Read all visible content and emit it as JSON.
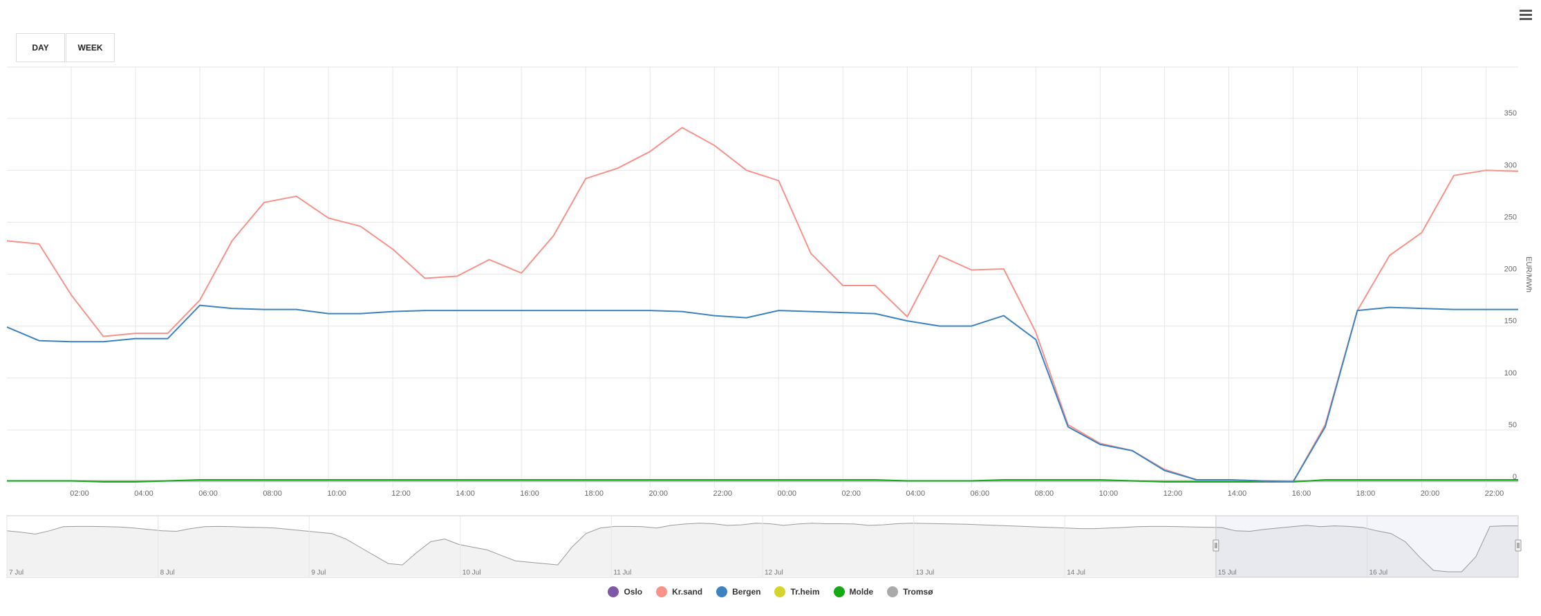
{
  "buttons": {
    "day": "DAY",
    "week": "WEEK"
  },
  "menu_icon": "hamburger-menu-icon",
  "colors": {
    "grid": "#e6e6e6",
    "navigator_fill": "#f2f2f2",
    "navigator_line": "#999999",
    "selection": "#e6e6e6"
  },
  "chart_data": {
    "type": "line",
    "xlabel": "",
    "ylabel": "EUR/MWh",
    "ylim": [
      0,
      400
    ],
    "yticks": [
      0,
      50,
      100,
      150,
      200,
      250,
      300,
      350
    ],
    "x_start": "15 Jul 00:00",
    "x_step_hours": 1,
    "xticks": [
      "02:00",
      "04:00",
      "06:00",
      "08:00",
      "10:00",
      "12:00",
      "14:00",
      "16:00",
      "18:00",
      "20:00",
      "22:00",
      "00:00",
      "02:00",
      "04:00",
      "06:00",
      "08:00",
      "10:00",
      "12:00",
      "14:00",
      "16:00",
      "18:00",
      "20:00",
      "22:00"
    ],
    "grid": true,
    "legend_position": "bottom-center",
    "series": [
      {
        "name": "Oslo",
        "color": "#7e57a6",
        "values": [
          1,
          1,
          1,
          1,
          1,
          1,
          1,
          1,
          1,
          1,
          1,
          1,
          1,
          1,
          1,
          1,
          1,
          1,
          1,
          1,
          1,
          1,
          1,
          1,
          1,
          1,
          1,
          1,
          1,
          1,
          1,
          1,
          1,
          1,
          1,
          1,
          1,
          1,
          1,
          1,
          1,
          1,
          1,
          1,
          1,
          1,
          1,
          1
        ]
      },
      {
        "name": "Kr.sand",
        "color": "#f7928a",
        "values": [
          232,
          229,
          180,
          140,
          143,
          143,
          175,
          232,
          269,
          275,
          254,
          246,
          224,
          196,
          198,
          214,
          201,
          237,
          292,
          302,
          318,
          341,
          324,
          300,
          290,
          220,
          189,
          189,
          159,
          218,
          204,
          205,
          144,
          55,
          37,
          30,
          12,
          2,
          2,
          1,
          0,
          55,
          165,
          218,
          240,
          295,
          300,
          299
        ]
      },
      {
        "name": "Bergen",
        "color": "#3c82c0",
        "values": [
          149,
          136,
          135,
          135,
          138,
          138,
          170,
          167,
          166,
          166,
          162,
          162,
          164,
          165,
          165,
          165,
          165,
          165,
          165,
          165,
          165,
          164,
          160,
          158,
          165,
          164,
          163,
          162,
          155,
          150,
          150,
          160,
          137,
          53,
          36,
          30,
          11,
          2,
          2,
          1,
          0,
          53,
          165,
          168,
          167,
          166,
          166,
          166
        ]
      },
      {
        "name": "Tr.heim",
        "color": "#d4d42a",
        "values": [
          1,
          1,
          1,
          1,
          1,
          1,
          1,
          1,
          1,
          1,
          1,
          1,
          1,
          1,
          1,
          1,
          1,
          1,
          1,
          1,
          1,
          1,
          1,
          1,
          1,
          1,
          1,
          1,
          1,
          1,
          1,
          1,
          1,
          1,
          1,
          1,
          1,
          1,
          1,
          1,
          1,
          1,
          1,
          1,
          1,
          1,
          1,
          1
        ]
      },
      {
        "name": "Molde",
        "color": "#16a916",
        "values": [
          1,
          1,
          1,
          0,
          0,
          1,
          2,
          2,
          2,
          2,
          2,
          2,
          2,
          2,
          2,
          2,
          2,
          2,
          2,
          2,
          2,
          2,
          2,
          2,
          2,
          2,
          2,
          2,
          1,
          1,
          1,
          2,
          2,
          2,
          2,
          1,
          0,
          0,
          0,
          0,
          0,
          2,
          2,
          2,
          2,
          2,
          2,
          2
        ]
      },
      {
        "name": "Tromsø",
        "color": "#aaaaaa",
        "values": [
          1,
          1,
          1,
          1,
          1,
          1,
          1,
          1,
          1,
          1,
          1,
          1,
          1,
          1,
          1,
          1,
          1,
          1,
          1,
          1,
          1,
          1,
          1,
          1,
          1,
          1,
          1,
          1,
          1,
          1,
          1,
          1,
          1,
          1,
          1,
          1,
          1,
          1,
          1,
          1,
          1,
          1,
          1,
          1,
          1,
          1,
          1,
          1
        ]
      }
    ],
    "navigator": {
      "xticks": [
        "7 Jul",
        "8 Jul",
        "9 Jul",
        "10 Jul",
        "11 Jul",
        "12 Jul",
        "13 Jul",
        "14 Jul",
        "15 Jul",
        "16 Jul"
      ],
      "selected_range": [
        "15 Jul 00:00",
        "16 Jul 23:00"
      ],
      "values": [
        150,
        145,
        138,
        150,
        165,
        166,
        166,
        165,
        164,
        160,
        155,
        150,
        148,
        158,
        165,
        166,
        165,
        163,
        162,
        160,
        155,
        150,
        145,
        140,
        120,
        90,
        60,
        30,
        25,
        70,
        110,
        120,
        100,
        90,
        80,
        60,
        40,
        35,
        30,
        25,
        90,
        140,
        160,
        166,
        166,
        165,
        160,
        170,
        175,
        178,
        176,
        170,
        172,
        178,
        176,
        170,
        175,
        178,
        176,
        176,
        175,
        170,
        172,
        176,
        178,
        177,
        176,
        175,
        174,
        172,
        170,
        168,
        166,
        164,
        162,
        160,
        158,
        158,
        160,
        162,
        165,
        166,
        166,
        165,
        164,
        163,
        162,
        150,
        148,
        155,
        160,
        165,
        170,
        165,
        168,
        166,
        162,
        150,
        140,
        110,
        55,
        5,
        0,
        0,
        55,
        166,
        168,
        168
      ]
    }
  },
  "legend": [
    {
      "label": "Oslo",
      "color": "#7e57a6"
    },
    {
      "label": "Kr.sand",
      "color": "#f7928a"
    },
    {
      "label": "Bergen",
      "color": "#3c82c0"
    },
    {
      "label": "Tr.heim",
      "color": "#d4d42a"
    },
    {
      "label": "Molde",
      "color": "#16a916"
    },
    {
      "label": "Tromsø",
      "color": "#aaaaaa"
    }
  ]
}
